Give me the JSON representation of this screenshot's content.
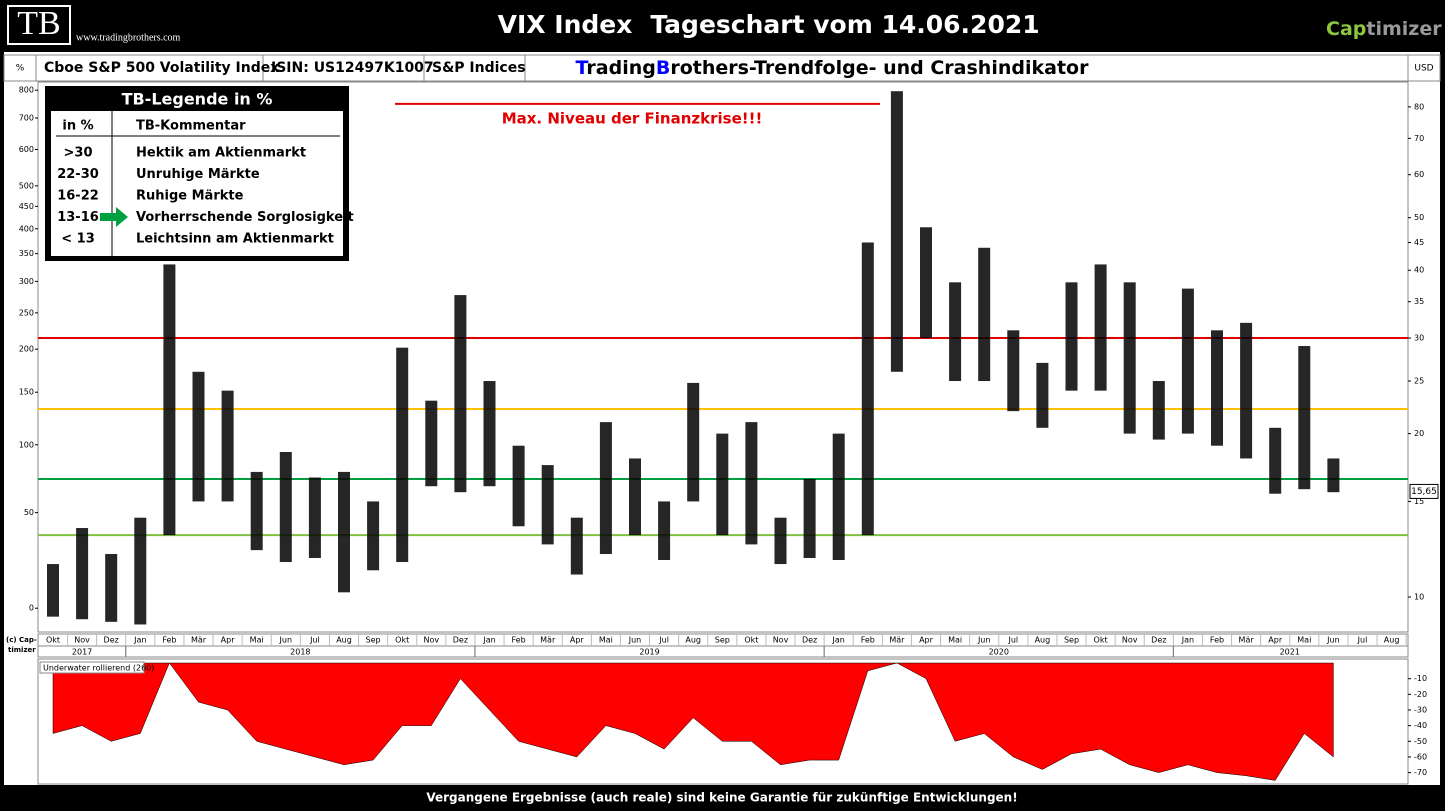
{
  "header": {
    "logo": "TB",
    "site": "www.tradingbrothers.com",
    "title": "VIX Index",
    "subtitle": "Tageschart vom 14.06.2021",
    "brand": [
      "Cap",
      "timizer"
    ]
  },
  "info_bar": {
    "unit_left": "%",
    "name": "Cboe S&P 500 Volatility Index",
    "isin": "ISIN: US12497K1007",
    "provider": "S&P Indices",
    "indicator_title": [
      "T",
      "rading",
      "B",
      "rothers-Trendfolge- und Crashindikator"
    ],
    "unit_right": "USD"
  },
  "legend_box": {
    "title": "TB-Legende in %",
    "header": [
      "in %",
      "TB-Kommentar"
    ],
    "rows": [
      [
        ">30",
        "Hektik am Aktienmarkt"
      ],
      [
        "22-30",
        "Unruhige Märkte"
      ],
      [
        "16-22",
        "Ruhige Märkte"
      ],
      [
        "13-16",
        "Vorherrschende Sorglosigkeit"
      ],
      [
        "< 13",
        "Leichtsinn am Aktienmarkt"
      ]
    ]
  },
  "copyright": [
    "(c) Cap-",
    "timizer"
  ],
  "footer": "Vergangene Ergebnisse (auch reale) sind keine Garantie für zukünftige Entwicklungen!",
  "chart_data": [
    {
      "type": "range",
      "color": "#000000",
      "categories": [
        "Okt",
        "Nov",
        "Dez",
        "Jan",
        "Feb",
        "Mär",
        "Apr",
        "Mai",
        "Jun",
        "Jul",
        "Aug",
        "Sep",
        "Okt",
        "Nov",
        "Dez",
        "Jan",
        "Feb",
        "Mär",
        "Apr",
        "Mai",
        "Jun",
        "Jul",
        "Aug",
        "Sep",
        "Okt",
        "Nov",
        "Dez",
        "Jan",
        "Feb",
        "Mär",
        "Apr",
        "Mai",
        "Jun",
        "Jul",
        "Aug",
        "Sep",
        "Okt",
        "Nov",
        "Dez",
        "Jan",
        "Feb",
        "Mär",
        "Apr",
        "Mai",
        "Jun",
        "Jul",
        "Aug"
      ],
      "years": [
        "2017",
        "2018",
        "2019",
        "2020",
        "2021"
      ],
      "low": [
        9.2,
        9.1,
        9.0,
        8.9,
        13,
        15,
        15,
        12.2,
        11.6,
        11.8,
        10.2,
        11.2,
        11.6,
        16,
        15.6,
        16,
        13.5,
        12.5,
        11.0,
        12,
        13,
        11.7,
        15,
        13,
        12.5,
        11.5,
        11.8,
        11.7,
        13,
        26,
        30,
        25,
        25,
        22,
        20.5,
        24,
        24,
        20,
        19.5,
        20,
        19,
        18,
        15.5,
        15.8,
        15.6,
        null,
        null
      ],
      "high": [
        11.5,
        13.4,
        12,
        14,
        41,
        26,
        24,
        17,
        18.5,
        16.6,
        17,
        15,
        28.8,
        23,
        36,
        25,
        19,
        17.5,
        14,
        21,
        18,
        15,
        24.8,
        20,
        21,
        14,
        16.5,
        20,
        45,
        85.5,
        48,
        38,
        44,
        31,
        27,
        38,
        41,
        38,
        25,
        37,
        31,
        32,
        20.5,
        29,
        18,
        null,
        null
      ],
      "axis": "y2",
      "ylim": [
        -9.6,
        832
      ],
      "yticks": [
        0,
        50,
        100,
        150,
        200,
        250,
        300,
        350,
        400,
        450,
        500,
        600,
        700,
        800
      ],
      "y2lim": [
        8.62,
        88.9
      ],
      "y2ticks": [
        10,
        15,
        20,
        25,
        30,
        35,
        40,
        45,
        50,
        60,
        70,
        80
      ],
      "y2scale": "log",
      "levels": [
        {
          "value": 30,
          "color": "#e00000"
        },
        {
          "value": 22.2,
          "color": "#ffc000"
        },
        {
          "value": 16.5,
          "color": "#00a040"
        },
        {
          "value": 13,
          "color": "#80c040"
        }
      ],
      "annotation": {
        "text": "Max. Niveau der Finanzkrise!!!",
        "value": 81,
        "color": "#e00000"
      },
      "last_value": {
        "value": 15.65,
        "label": "15,65"
      }
    },
    {
      "type": "area",
      "title": "Underwater rollierend (260)",
      "color": "#ff0000",
      "values": [
        -45,
        -40,
        -50,
        -45,
        0,
        -25,
        -30,
        -50,
        -55,
        -60,
        -65,
        -62,
        -40,
        -40,
        -10,
        -30,
        -50,
        -55,
        -60,
        -40,
        -45,
        -55,
        -35,
        -50,
        -50,
        -65,
        -62,
        -62,
        -5,
        0,
        -10,
        -50,
        -45,
        -60,
        -68,
        -58,
        -55,
        -65,
        -70,
        -65,
        -70,
        -72,
        -75,
        -45,
        -60,
        null,
        null
      ],
      "ylim": [
        0,
        -76
      ],
      "yticks": [
        -10,
        -20,
        -30,
        -40,
        -50,
        -60,
        -70
      ]
    }
  ]
}
